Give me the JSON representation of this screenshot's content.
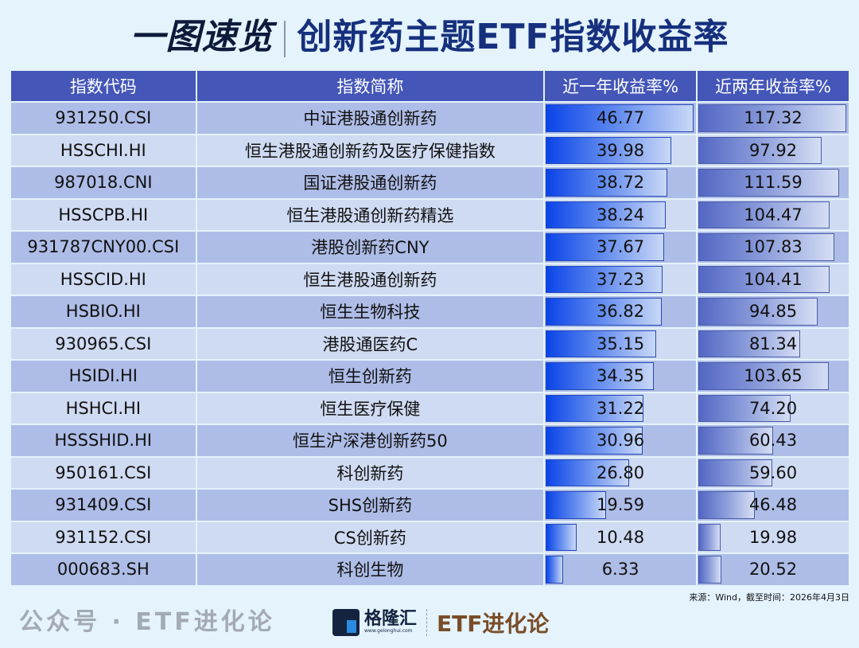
{
  "title": {
    "left": "一图速览",
    "right": "创新药主题ETF指数收益率"
  },
  "watermark": "公众号 · ETF进化论",
  "source": "来源：Wind，截至时间：2026年4月3日",
  "logo": {
    "brand": "格隆汇",
    "url_text": "www.gelonghui.com",
    "column": "ETF进化论"
  },
  "colors": {
    "header": "#4456b8",
    "bar_1y": "#0a44e8",
    "bar_2y": "#5367c4",
    "title": "#16307e"
  },
  "chart_data": {
    "type": "table",
    "columns": [
      "指数代码",
      "指数简称",
      "近一年收益率%",
      "近两年收益率%"
    ],
    "rows": [
      {
        "code": "931250.CSI",
        "name": "中证港股通创新药",
        "r1": "46.77",
        "r2": "117.32"
      },
      {
        "code": "HSSCHI.HI",
        "name": "恒生港股通创新药及医疗保健指数",
        "r1": "39.98",
        "r2": "97.92"
      },
      {
        "code": "987018.CNI",
        "name": "国证港股通创新药",
        "r1": "38.72",
        "r2": "111.59"
      },
      {
        "code": "HSSCPB.HI",
        "name": "恒生港股通创新药精选",
        "r1": "38.24",
        "r2": "104.47"
      },
      {
        "code": "931787CNY00.CSI",
        "name": "港股创新药CNY",
        "r1": "37.67",
        "r2": "107.83"
      },
      {
        "code": "HSSCID.HI",
        "name": "恒生港股通创新药",
        "r1": "37.23",
        "r2": "104.41"
      },
      {
        "code": "HSBIO.HI",
        "name": "恒生生物科技",
        "r1": "36.82",
        "r2": "94.85"
      },
      {
        "code": "930965.CSI",
        "name": "港股通医药C",
        "r1": "35.15",
        "r2": "81.34"
      },
      {
        "code": "HSIDI.HI",
        "name": "恒生创新药",
        "r1": "34.35",
        "r2": "103.65"
      },
      {
        "code": "HSHCI.HI",
        "name": "恒生医疗保健",
        "r1": "31.22",
        "r2": "74.20"
      },
      {
        "code": "HSSSHID.HI",
        "name": "恒生沪深港创新药50",
        "r1": "30.96",
        "r2": "60.43"
      },
      {
        "code": "950161.CSI",
        "name": "科创新药",
        "r1": "26.80",
        "r2": "59.60"
      },
      {
        "code": "931409.CSI",
        "name": "SHS创新药",
        "r1": "19.59",
        "r2": "46.48"
      },
      {
        "code": "931152.CSI",
        "name": "CS创新药",
        "r1": "10.48",
        "r2": "19.98"
      },
      {
        "code": "000683.SH",
        "name": "科创生物",
        "r1": "6.33",
        "r2": "20.52"
      }
    ]
  }
}
